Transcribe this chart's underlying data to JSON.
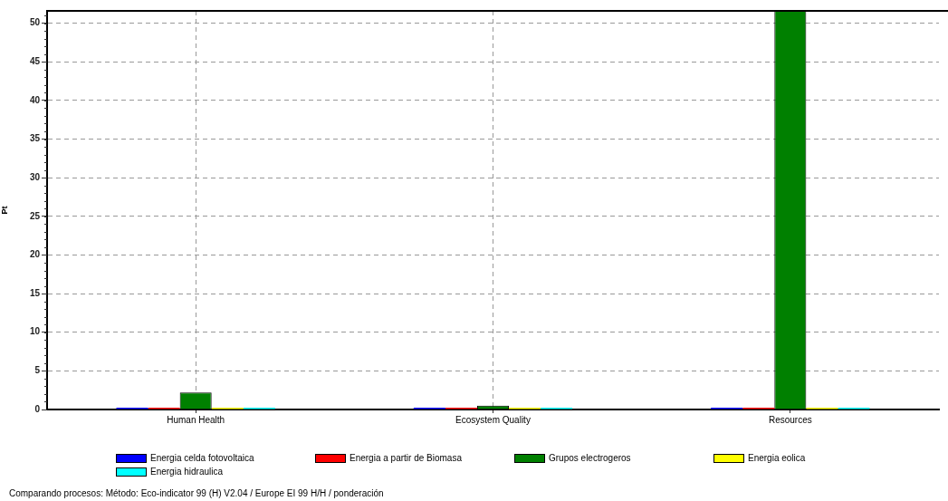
{
  "chart_data": {
    "type": "bar",
    "categories": [
      "Human Health",
      "Ecosystem Quality",
      "Resources"
    ],
    "series": [
      {
        "name": "Energia celda fotovoltaica",
        "color": "#0000ff",
        "values": [
          0,
          0,
          0
        ]
      },
      {
        "name": "Energia a partir de Biomasa",
        "color": "#ff0000",
        "values": [
          0,
          0,
          0
        ]
      },
      {
        "name": "Grupos electrogeros",
        "color": "#008000",
        "values": [
          2.2,
          0.5,
          51.6
        ]
      },
      {
        "name": "Energia eolica",
        "color": "#ffff00",
        "values": [
          0,
          0,
          0
        ]
      },
      {
        "name": "Energia hidraulica",
        "color": "#00ffff",
        "values": [
          0,
          0,
          0
        ]
      }
    ],
    "ylabel": "Pt",
    "ylim": [
      0,
      51.6
    ],
    "yticks": [
      0,
      5,
      10,
      15,
      20,
      25,
      30,
      35,
      40,
      45,
      50
    ],
    "grid": true,
    "legend": "bottom",
    "annotations": [
      "Comparando procesos: Método: Eco-indicator 99 (H) V2.04 / Europe EI 99 H/H / ponderación"
    ]
  }
}
